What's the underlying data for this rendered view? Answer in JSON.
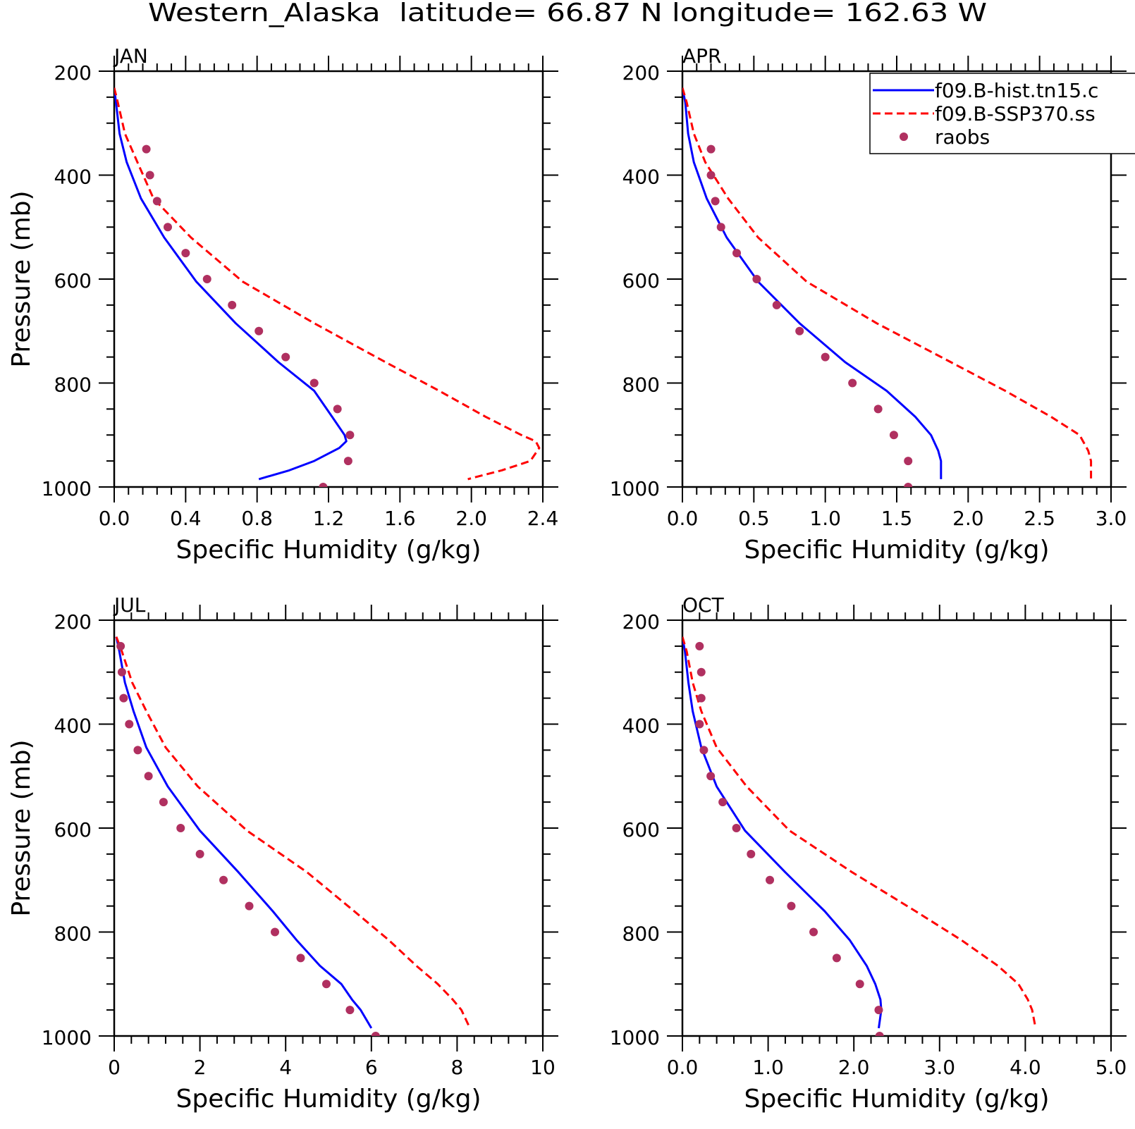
{
  "figure": {
    "title": "Western_Alaska  latitude= 66.87 N longitude= 162.63 W"
  },
  "legend": {
    "entries": [
      {
        "label": "f09.B-hist.tn15.c",
        "style": "solid",
        "color": "#0000ff"
      },
      {
        "label": "f09.B-SSP370.ss",
        "style": "dashed",
        "color": "#ff0000"
      },
      {
        "label": "raobs",
        "style": "marker",
        "color": "#b03060"
      }
    ]
  },
  "colors": {
    "hist": "#0000ff",
    "ssp": "#ff0000",
    "raobs": "#b03060"
  },
  "chart_data": [
    {
      "type": "line",
      "title": "JAN",
      "xlabel": "Specific Humidity (g/kg)",
      "ylabel": "Pressure (mb)",
      "xlim": [
        0,
        2.4
      ],
      "ylim": [
        1000,
        200
      ],
      "y_inverted": true,
      "xticks": [
        "0.0",
        "0.4",
        "0.8",
        "1.2",
        "1.6",
        "2.0",
        "2.4"
      ],
      "yticks": [
        "200",
        "400",
        "600",
        "800",
        "1000"
      ],
      "series": [
        {
          "name": "f09.B-hist.tn15.c",
          "style": "solid",
          "x": [
            0.0,
            0.01,
            0.03,
            0.07,
            0.15,
            0.28,
            0.46,
            0.68,
            0.92,
            1.12,
            1.22,
            1.29,
            1.3,
            1.26,
            1.12,
            0.98,
            0.81
          ],
          "y": [
            232,
            260,
            320,
            375,
            445,
            520,
            605,
            685,
            760,
            815,
            865,
            900,
            912,
            925,
            950,
            968,
            985
          ]
        },
        {
          "name": "f09.B-SSP370.ss",
          "style": "dashed",
          "x": [
            0.0,
            0.02,
            0.06,
            0.13,
            0.22,
            0.43,
            0.72,
            1.12,
            1.52,
            1.82,
            2.08,
            2.28,
            2.36,
            2.38,
            2.33,
            2.17,
            1.98
          ],
          "y": [
            232,
            260,
            320,
            375,
            445,
            520,
            605,
            685,
            760,
            815,
            865,
            900,
            912,
            925,
            950,
            968,
            985
          ]
        },
        {
          "name": "raobs",
          "style": "marker",
          "x": [
            0.18,
            0.2,
            0.24,
            0.3,
            0.4,
            0.52,
            0.66,
            0.81,
            0.96,
            1.12,
            1.25,
            1.32,
            1.31,
            1.17
          ],
          "y": [
            350,
            400,
            450,
            500,
            550,
            600,
            650,
            700,
            750,
            800,
            850,
            900,
            950,
            1000
          ]
        }
      ]
    },
    {
      "type": "line",
      "title": "APR",
      "xlabel": "Specific Humidity (g/kg)",
      "ylabel": "",
      "xlim": [
        0,
        3.0
      ],
      "ylim": [
        1000,
        200
      ],
      "y_inverted": true,
      "xticks": [
        "0.0",
        "0.5",
        "1.0",
        "1.5",
        "2.0",
        "2.5",
        "3.0"
      ],
      "yticks": [
        "200",
        "400",
        "600",
        "800",
        "1000"
      ],
      "series": [
        {
          "name": "f09.B-hist.tn15.c",
          "style": "solid",
          "x": [
            0.0,
            0.02,
            0.04,
            0.08,
            0.17,
            0.31,
            0.53,
            0.82,
            1.14,
            1.43,
            1.63,
            1.74,
            1.79,
            1.81,
            1.81
          ],
          "y": [
            232,
            260,
            320,
            375,
            445,
            520,
            605,
            685,
            760,
            815,
            865,
            900,
            930,
            950,
            985
          ]
        },
        {
          "name": "f09.B-SSP370.ss",
          "style": "dashed",
          "x": [
            0.0,
            0.03,
            0.08,
            0.16,
            0.32,
            0.53,
            0.87,
            1.36,
            1.88,
            2.26,
            2.58,
            2.78,
            2.84,
            2.86,
            2.86
          ],
          "y": [
            232,
            260,
            320,
            375,
            445,
            520,
            605,
            685,
            760,
            815,
            865,
            900,
            930,
            950,
            985
          ]
        },
        {
          "name": "raobs",
          "style": "marker",
          "x": [
            0.2,
            0.2,
            0.23,
            0.27,
            0.38,
            0.52,
            0.66,
            0.82,
            1.0,
            1.19,
            1.37,
            1.48,
            1.58,
            1.58
          ],
          "y": [
            350,
            400,
            450,
            500,
            550,
            600,
            650,
            700,
            750,
            800,
            850,
            900,
            950,
            1000
          ]
        }
      ]
    },
    {
      "type": "line",
      "title": "JUL",
      "xlabel": "Specific Humidity (g/kg)",
      "ylabel": "Pressure (mb)",
      "xlim": [
        0,
        10
      ],
      "ylim": [
        1000,
        200
      ],
      "y_inverted": true,
      "xticks": [
        "0",
        "2",
        "4",
        "6",
        "8",
        "10"
      ],
      "yticks": [
        "200",
        "400",
        "600",
        "800",
        "1000"
      ],
      "series": [
        {
          "name": "f09.B-hist.tn15.c",
          "style": "solid",
          "x": [
            0.05,
            0.12,
            0.25,
            0.45,
            0.75,
            1.25,
            2.0,
            2.9,
            3.7,
            4.25,
            4.8,
            5.3,
            5.55,
            5.75,
            6.0
          ],
          "y": [
            232,
            260,
            320,
            375,
            445,
            520,
            605,
            685,
            760,
            815,
            865,
            900,
            930,
            950,
            985
          ]
        },
        {
          "name": "f09.B-SSP370.ss",
          "style": "dashed",
          "x": [
            0.05,
            0.18,
            0.42,
            0.75,
            1.2,
            1.95,
            3.1,
            4.5,
            5.6,
            6.4,
            7.05,
            7.55,
            7.9,
            8.1,
            8.3
          ],
          "y": [
            232,
            260,
            320,
            375,
            445,
            520,
            605,
            685,
            760,
            815,
            865,
            900,
            930,
            950,
            985
          ]
        },
        {
          "name": "raobs",
          "style": "marker",
          "x": [
            0.15,
            0.18,
            0.22,
            0.35,
            0.55,
            0.8,
            1.15,
            1.55,
            2.0,
            2.55,
            3.15,
            3.75,
            4.35,
            4.95,
            5.5,
            6.1
          ],
          "y": [
            250,
            300,
            350,
            400,
            450,
            500,
            550,
            600,
            650,
            700,
            750,
            800,
            850,
            900,
            950,
            1000
          ]
        }
      ]
    },
    {
      "type": "line",
      "title": "OCT",
      "xlabel": "Specific Humidity (g/kg)",
      "ylabel": "",
      "xlim": [
        0,
        5.0
      ],
      "ylim": [
        1000,
        200
      ],
      "y_inverted": true,
      "xticks": [
        "0.0",
        "1.0",
        "2.0",
        "3.0",
        "4.0",
        "5.0"
      ],
      "yticks": [
        "200",
        "400",
        "600",
        "800",
        "1000"
      ],
      "series": [
        {
          "name": "f09.B-hist.tn15.c",
          "style": "solid",
          "x": [
            0.0,
            0.03,
            0.07,
            0.12,
            0.22,
            0.4,
            0.73,
            1.2,
            1.66,
            1.95,
            2.15,
            2.25,
            2.31,
            2.32,
            2.29
          ],
          "y": [
            232,
            260,
            320,
            375,
            445,
            520,
            605,
            685,
            760,
            815,
            865,
            900,
            930,
            950,
            985
          ]
        },
        {
          "name": "f09.B-SSP370.ss",
          "style": "dashed",
          "x": [
            0.0,
            0.05,
            0.12,
            0.22,
            0.4,
            0.75,
            1.25,
            1.98,
            2.72,
            3.25,
            3.68,
            3.92,
            4.03,
            4.08,
            4.12
          ],
          "y": [
            232,
            260,
            320,
            375,
            445,
            520,
            605,
            685,
            760,
            815,
            865,
            900,
            930,
            950,
            985
          ]
        },
        {
          "name": "raobs",
          "style": "marker",
          "x": [
            0.2,
            0.22,
            0.22,
            0.2,
            0.25,
            0.33,
            0.47,
            0.63,
            0.8,
            1.02,
            1.27,
            1.53,
            1.8,
            2.07,
            2.29,
            2.3
          ],
          "y": [
            250,
            300,
            350,
            400,
            450,
            500,
            550,
            600,
            650,
            700,
            750,
            800,
            850,
            900,
            950,
            1000
          ]
        }
      ]
    }
  ]
}
